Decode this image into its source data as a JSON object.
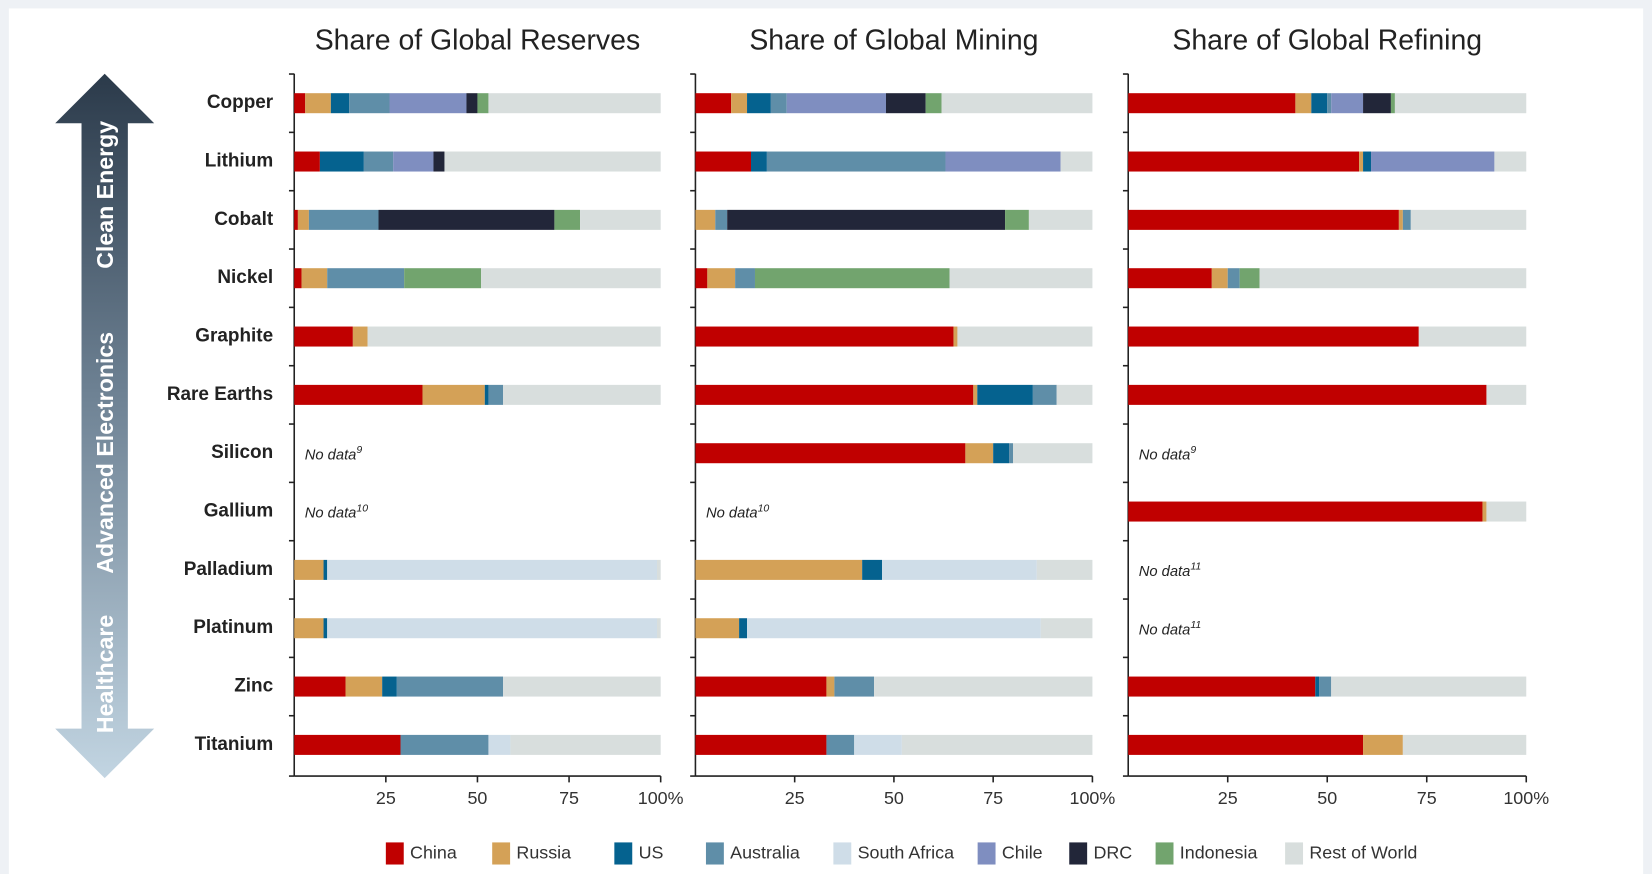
{
  "chart_data": {
    "type": "bar",
    "orientation": "horizontal",
    "stacked": true,
    "side_labels": [
      "Clean Energy",
      "Advanced Electronics",
      "Healthcare"
    ],
    "categories": [
      "Copper",
      "Lithium",
      "Cobalt",
      "Nickel",
      "Graphite",
      "Rare Earths",
      "Silicon",
      "Gallium",
      "Palladium",
      "Platinum",
      "Zinc",
      "Titanium"
    ],
    "legend": [
      {
        "name": "China",
        "color": "#c00000"
      },
      {
        "name": "Russia",
        "color": "#d4a157"
      },
      {
        "name": "US",
        "color": "#05628f"
      },
      {
        "name": "Australia",
        "color": "#5f8ea8"
      },
      {
        "name": "South Africa",
        "color": "#cfdde8"
      },
      {
        "name": "Chile",
        "color": "#7f8ec0"
      },
      {
        "name": "DRC",
        "color": "#222639"
      },
      {
        "name": "Indonesia",
        "color": "#72a46e"
      },
      {
        "name": "Rest of World",
        "color": "#d8dedd"
      }
    ],
    "panels": [
      {
        "title": "Share of Global Reserves",
        "xlim": [
          0,
          100
        ],
        "xticks": [
          25,
          50,
          75,
          {
            "value": 100,
            "label": "100%"
          }
        ],
        "notes": [
          {
            "category": "Silicon",
            "text": "No data",
            "footnote": "9"
          },
          {
            "category": "Gallium",
            "text": "No data",
            "footnote": "10"
          }
        ],
        "series": [
          {
            "values": [
              3,
              7,
              1,
              2,
              16,
              35,
              null,
              null,
              0,
              0,
              14,
              29
            ]
          },
          {
            "values": [
              7,
              0,
              3,
              7,
              4,
              17,
              null,
              null,
              8,
              8,
              10,
              0
            ]
          },
          {
            "values": [
              5,
              12,
              0,
              0,
              0,
              1,
              null,
              null,
              1,
              1,
              4,
              0
            ]
          },
          {
            "values": [
              11,
              8,
              19,
              21,
              0,
              4,
              null,
              null,
              0,
              0,
              29,
              24
            ]
          },
          {
            "values": [
              0,
              0,
              0,
              0,
              0,
              0,
              null,
              null,
              90,
              90,
              0,
              6
            ]
          },
          {
            "values": [
              21,
              11,
              0,
              0,
              0,
              0,
              null,
              null,
              0,
              0,
              0,
              0
            ]
          },
          {
            "values": [
              3,
              3,
              48,
              0,
              0,
              0,
              null,
              null,
              0,
              0,
              0,
              0
            ]
          },
          {
            "values": [
              3,
              0,
              7,
              21,
              0,
              0,
              null,
              null,
              0,
              0,
              0,
              0
            ]
          },
          {
            "values": [
              47,
              59,
              22,
              49,
              80,
              43,
              null,
              null,
              1,
              1,
              43,
              41
            ]
          }
        ]
      },
      {
        "title": "Share of Global Mining",
        "xlim": [
          0,
          100
        ],
        "xticks": [
          25,
          50,
          75,
          {
            "value": 100,
            "label": "100%"
          }
        ],
        "notes": [
          {
            "category": "Gallium",
            "text": "No data",
            "footnote": "10"
          }
        ],
        "series": [
          {
            "values": [
              9,
              14,
              0,
              3,
              65,
              70,
              68,
              null,
              0,
              0,
              33,
              33
            ]
          },
          {
            "values": [
              4,
              0,
              5,
              7,
              1,
              1,
              7,
              null,
              42,
              11,
              2,
              0
            ]
          },
          {
            "values": [
              6,
              4,
              0,
              0,
              0,
              14,
              4,
              null,
              5,
              2,
              0,
              0
            ]
          },
          {
            "values": [
              4,
              45,
              3,
              5,
              0,
              6,
              1,
              null,
              0,
              0,
              10,
              7
            ]
          },
          {
            "values": [
              0,
              0,
              0,
              0,
              0,
              0,
              0,
              null,
              39,
              74,
              0,
              12
            ]
          },
          {
            "values": [
              25,
              29,
              0,
              0,
              0,
              0,
              0,
              null,
              0,
              0,
              0,
              0
            ]
          },
          {
            "values": [
              10,
              0,
              70,
              0,
              0,
              0,
              0,
              null,
              0,
              0,
              0,
              0
            ]
          },
          {
            "values": [
              4,
              0,
              6,
              49,
              0,
              0,
              0,
              null,
              0,
              0,
              0,
              0
            ]
          },
          {
            "values": [
              38,
              8,
              16,
              36,
              34,
              9,
              20,
              null,
              14,
              13,
              55,
              48
            ]
          }
        ]
      },
      {
        "title": "Share of Global Refining",
        "xlim": [
          0,
          100
        ],
        "xticks": [
          25,
          50,
          75,
          {
            "value": 100,
            "label": "100%"
          }
        ],
        "notes": [
          {
            "category": "Silicon",
            "text": "No data",
            "footnote": "9"
          },
          {
            "category": "Palladium",
            "text": "No data",
            "footnote": "11"
          },
          {
            "category": "Platinum",
            "text": "No data",
            "footnote": "11"
          }
        ],
        "series": [
          {
            "values": [
              42,
              58,
              68,
              21,
              73,
              90,
              null,
              89,
              null,
              null,
              47,
              59
            ]
          },
          {
            "values": [
              4,
              1,
              1,
              4,
              0,
              0,
              null,
              1,
              null,
              null,
              0,
              10
            ]
          },
          {
            "values": [
              4,
              2,
              0,
              0,
              0,
              0,
              null,
              0,
              null,
              null,
              1,
              0
            ]
          },
          {
            "values": [
              1,
              0,
              2,
              3,
              0,
              0,
              null,
              0,
              null,
              null,
              3,
              0
            ]
          },
          {
            "values": [
              0,
              0,
              0,
              0,
              0,
              0,
              null,
              0,
              null,
              null,
              0,
              0
            ]
          },
          {
            "values": [
              8,
              31,
              0,
              0,
              0,
              0,
              null,
              0,
              null,
              null,
              0,
              0
            ]
          },
          {
            "values": [
              7,
              0,
              0,
              0,
              0,
              0,
              null,
              0,
              null,
              null,
              0,
              0
            ]
          },
          {
            "values": [
              1,
              0,
              0,
              5,
              0,
              0,
              null,
              0,
              null,
              null,
              0,
              0
            ]
          },
          {
            "values": [
              33,
              8,
              29,
              67,
              27,
              10,
              null,
              10,
              null,
              null,
              49,
              31
            ]
          }
        ]
      }
    ]
  }
}
